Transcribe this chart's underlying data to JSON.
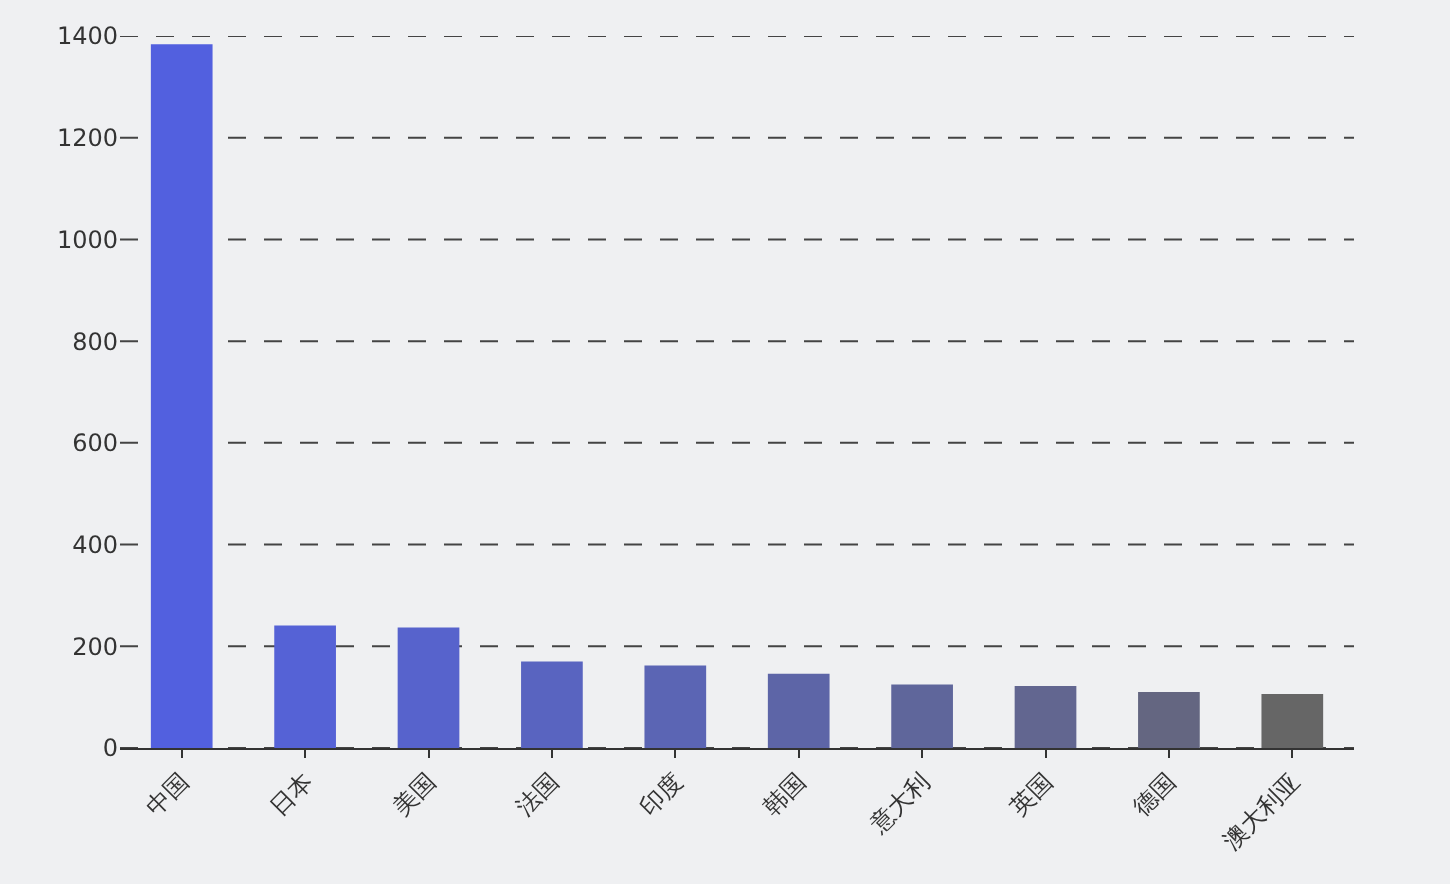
{
  "chart_data": {
    "type": "bar",
    "categories": [
      "中国",
      "日本",
      "美国",
      "法国",
      "印度",
      "韩国",
      "意大利",
      "英国",
      "德国",
      "澳大利亚"
    ],
    "values": [
      1384,
      241,
      237,
      170,
      162,
      146,
      125,
      122,
      110,
      106
    ],
    "colors": [
      "#5260df",
      "#5562d6",
      "#5763cc",
      "#5964c0",
      "#5b65b4",
      "#5d65a7",
      "#5f669b",
      "#626690",
      "#646681",
      "#666666"
    ],
    "ylim": [
      0,
      1400
    ],
    "yticks": [
      0,
      200,
      400,
      600,
      800,
      1000,
      1200,
      1400
    ],
    "grid": "y"
  }
}
